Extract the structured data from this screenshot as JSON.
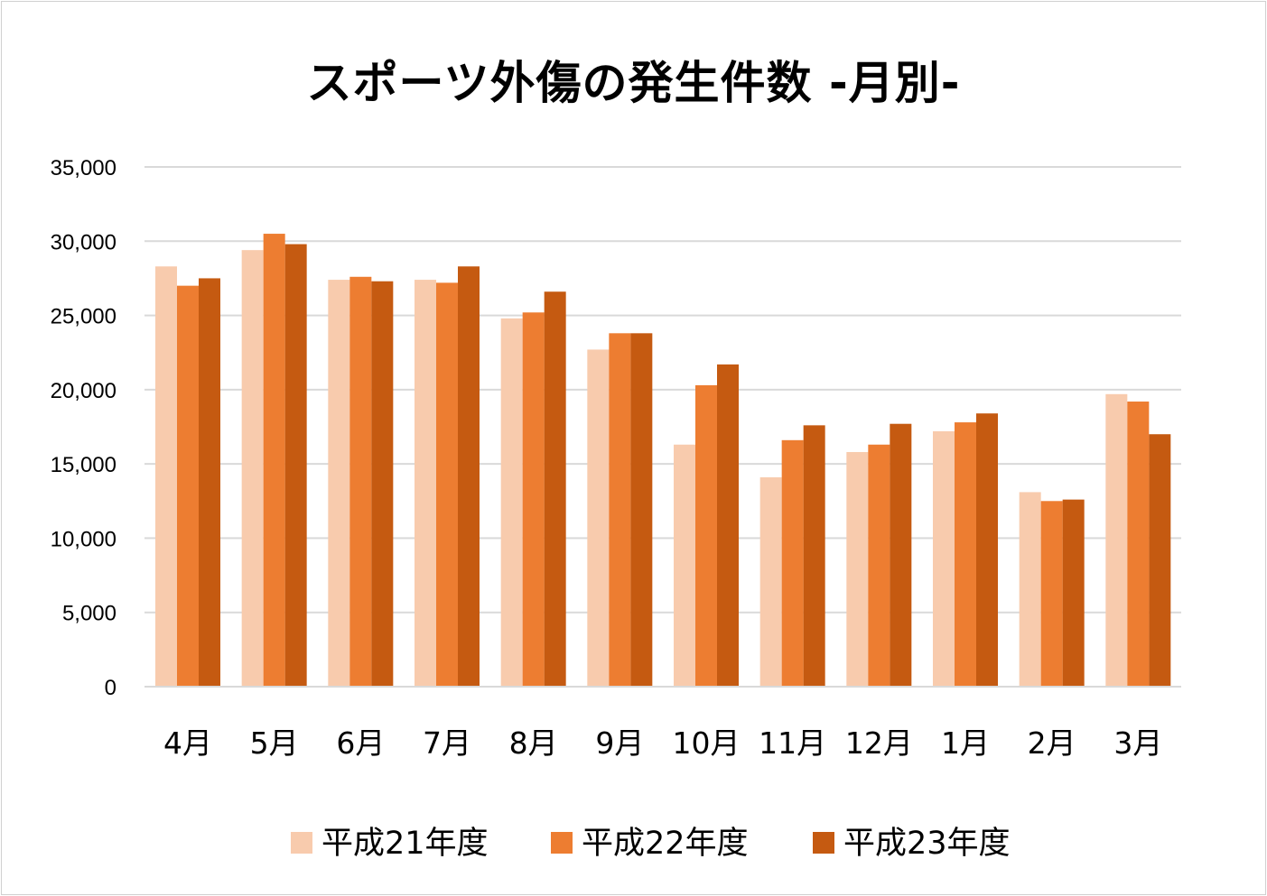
{
  "chart_data": {
    "type": "bar",
    "title": "スポーツ外傷の発生件数 -月別-",
    "xlabel": "",
    "ylabel": "",
    "categories": [
      "4月",
      "5月",
      "6月",
      "7月",
      "8月",
      "9月",
      "10月",
      "11月",
      "12月",
      "1月",
      "2月",
      "3月"
    ],
    "series": [
      {
        "name": "平成21年度",
        "color": "#F8CBAD",
        "values": [
          28300,
          29400,
          27400,
          27400,
          24800,
          22700,
          16300,
          14100,
          15800,
          17200,
          13100,
          19700
        ]
      },
      {
        "name": "平成22年度",
        "color": "#ED7D31",
        "values": [
          27000,
          30500,
          27600,
          27200,
          25200,
          23800,
          20300,
          16600,
          16300,
          17800,
          12500,
          19200
        ]
      },
      {
        "name": "平成23年度",
        "color": "#C55A11",
        "values": [
          27500,
          29800,
          27300,
          28300,
          26600,
          23800,
          21700,
          17600,
          17700,
          18400,
          12600,
          17000
        ]
      }
    ],
    "ylim": [
      0,
      35000
    ],
    "yticks": [
      "0",
      "5,000",
      "10,000",
      "15,000",
      "20,000",
      "25,000",
      "30,000",
      "35,000"
    ],
    "grid": true,
    "legend_position": "bottom"
  }
}
